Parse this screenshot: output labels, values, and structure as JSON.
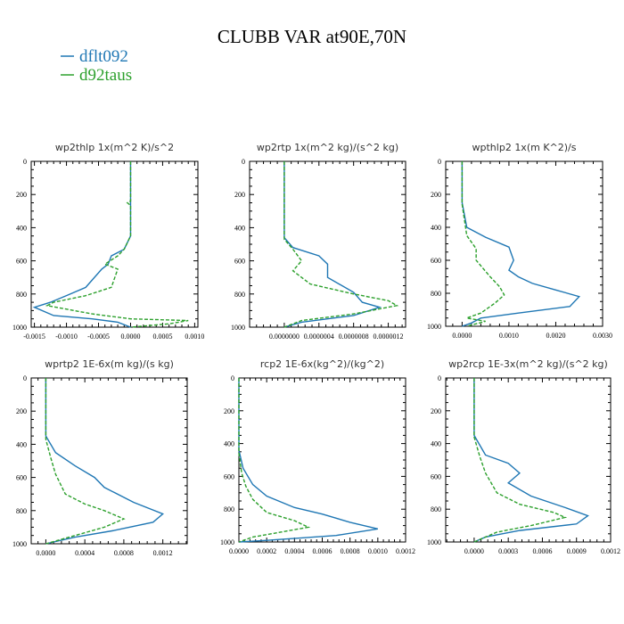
{
  "title": "CLUBB VAR at90E,70N",
  "legend": [
    {
      "label": "dflt092",
      "color": "#1f77b4",
      "dash": ""
    },
    {
      "label": "d92taus",
      "color": "#2ca02c",
      "dash": "4,2"
    }
  ],
  "chart_data": [
    {
      "type": "line",
      "title": "wp2thlp  1x(m^2 K)/s^2",
      "xlim": [
        -0.00155,
        0.00105
      ],
      "xticks": [
        -0.0015,
        -0.001,
        -0.0005,
        0,
        0.0005,
        0.001
      ],
      "xtick_labels": [
        "-0.0015",
        "-0.0010",
        "-0.0005",
        "0.0000",
        "0.0005",
        "0.0010"
      ],
      "ylim": [
        0,
        1000
      ],
      "yticks": [
        0,
        200,
        400,
        600,
        800,
        1000
      ],
      "series": [
        {
          "name": "dflt092",
          "points": [
            [
              0,
              0
            ],
            [
              0,
              250
            ],
            [
              0,
              450
            ],
            [
              -0.0001,
              530
            ],
            [
              -0.0003,
              570
            ],
            [
              -0.00035,
              620
            ],
            [
              -0.00045,
              650
            ],
            [
              -0.0007,
              760
            ],
            [
              -0.001,
              810
            ],
            [
              -0.00125,
              850
            ],
            [
              -0.0015,
              880
            ],
            [
              -0.0012,
              930
            ],
            [
              -0.0006,
              950
            ],
            [
              -0.0002,
              970
            ],
            [
              0,
              1000
            ]
          ]
        },
        {
          "name": "d92taus",
          "points": [
            [
              0,
              0
            ],
            [
              0,
              240
            ],
            [
              -5e-05,
              250
            ],
            [
              0,
              265
            ],
            [
              0,
              450
            ],
            [
              -0.0001,
              530
            ],
            [
              -0.0002,
              570
            ],
            [
              -0.0004,
              620
            ],
            [
              -0.0002,
              650
            ],
            [
              -0.0003,
              760
            ],
            [
              -0.0007,
              810
            ],
            [
              -0.0012,
              850
            ],
            [
              -0.0013,
              870
            ],
            [
              -0.0006,
              920
            ],
            [
              0,
              950
            ],
            [
              0.0009,
              960
            ],
            [
              0.0006,
              980
            ],
            [
              0,
              1000
            ]
          ]
        }
      ]
    },
    {
      "type": "line",
      "title": "wp2rtp  1x(m^2 kg)/(s^2 kg)",
      "xlim": [
        -4e-07,
        1.4e-06
      ],
      "xticks": [
        0,
        4e-07,
        8e-07,
        1.2e-06
      ],
      "xtick_labels": [
        "0.0000000",
        "0.0000004",
        "0.0000008",
        "0.0000012"
      ],
      "ylim": [
        0,
        1000
      ],
      "yticks": [
        0,
        200,
        400,
        600,
        800,
        1000
      ],
      "series": [
        {
          "name": "dflt092",
          "points": [
            [
              0,
              0
            ],
            [
              0,
              460
            ],
            [
              1e-07,
              520
            ],
            [
              4e-07,
              570
            ],
            [
              5e-07,
              620
            ],
            [
              5e-07,
              700
            ],
            [
              8e-07,
              790
            ],
            [
              9e-07,
              850
            ],
            [
              1.1e-06,
              880
            ],
            [
              8e-07,
              930
            ],
            [
              2e-07,
              970
            ],
            [
              0,
              1000
            ]
          ]
        },
        {
          "name": "d92taus",
          "points": [
            [
              0,
              0
            ],
            [
              0,
              470
            ],
            [
              1e-07,
              530
            ],
            [
              2e-07,
              600
            ],
            [
              1e-07,
              660
            ],
            [
              3e-07,
              740
            ],
            [
              8e-07,
              800
            ],
            [
              1.2e-06,
              840
            ],
            [
              1.3e-06,
              870
            ],
            [
              8e-07,
              920
            ],
            [
              2e-07,
              960
            ],
            [
              0,
              1000
            ]
          ]
        }
      ]
    },
    {
      "type": "line",
      "title": "wpthlp2  1x(m K^2)/s",
      "xlim": [
        -0.00035,
        0.003
      ],
      "xticks": [
        0,
        0.001,
        0.002,
        0.003
      ],
      "xtick_labels": [
        "0.0000",
        "0.0010",
        "0.0020",
        "0.0030"
      ],
      "ylim": [
        0,
        1000
      ],
      "yticks": [
        0,
        200,
        400,
        600,
        800,
        1000
      ],
      "series": [
        {
          "name": "dflt092",
          "points": [
            [
              0,
              0
            ],
            [
              0,
              250
            ],
            [
              0.0001,
              400
            ],
            [
              0.0005,
              460
            ],
            [
              0.001,
              520
            ],
            [
              0.0011,
              600
            ],
            [
              0.001,
              660
            ],
            [
              0.0012,
              700
            ],
            [
              0.0015,
              740
            ],
            [
              0.002,
              780
            ],
            [
              0.0025,
              820
            ],
            [
              0.0023,
              880
            ],
            [
              0.0012,
              920
            ],
            [
              0.0004,
              950
            ],
            [
              0.0002,
              980
            ],
            [
              0,
              1000
            ]
          ]
        },
        {
          "name": "d92taus",
          "points": [
            [
              0,
              0
            ],
            [
              0,
              260
            ],
            [
              0.0001,
              450
            ],
            [
              0.0003,
              530
            ],
            [
              0.0003,
              600
            ],
            [
              0.0006,
              700
            ],
            [
              0.0008,
              760
            ],
            [
              0.0009,
              810
            ],
            [
              0.0007,
              860
            ],
            [
              0.0004,
              920
            ],
            [
              0.0001,
              950
            ],
            [
              0.0005,
              970
            ],
            [
              0.0001,
              1000
            ]
          ]
        }
      ]
    },
    {
      "type": "line",
      "title": "wprtp2  1E-6x(m kg)/(s kg)",
      "xlim": [
        -0.00015,
        0.00145
      ],
      "xticks": [
        0,
        0.0004,
        0.0008,
        0.0012
      ],
      "xtick_labels": [
        "0.0000",
        "0.0004",
        "0.0008",
        "0.0012"
      ],
      "ylim": [
        0,
        1000
      ],
      "yticks": [
        0,
        200,
        400,
        600,
        800,
        1000
      ],
      "series": [
        {
          "name": "dflt092",
          "points": [
            [
              0,
              0
            ],
            [
              0,
              350
            ],
            [
              0.0001,
              450
            ],
            [
              0.0003,
              530
            ],
            [
              0.0005,
              600
            ],
            [
              0.0006,
              660
            ],
            [
              0.0009,
              750
            ],
            [
              0.0012,
              820
            ],
            [
              0.0011,
              870
            ],
            [
              0.0007,
              920
            ],
            [
              0.0003,
              960
            ],
            [
              0,
              1000
            ]
          ]
        },
        {
          "name": "d92taus",
          "points": [
            [
              0,
              0
            ],
            [
              0,
              370
            ],
            [
              5e-05,
              480
            ],
            [
              0.0001,
              580
            ],
            [
              0.0002,
              700
            ],
            [
              0.0004,
              760
            ],
            [
              0.0006,
              800
            ],
            [
              0.0008,
              850
            ],
            [
              0.0006,
              900
            ],
            [
              0.0003,
              950
            ],
            [
              0,
              1000
            ]
          ]
        }
      ]
    },
    {
      "type": "line",
      "title": "rcp2  1E-6x(kg^2)/(kg^2)",
      "xlim": [
        0,
        0.0012
      ],
      "xticks": [
        0,
        0.0002,
        0.0004,
        0.0006,
        0.0008,
        0.001,
        0.0012
      ],
      "xtick_labels": [
        "0.0000",
        "0.0002",
        "0.0004",
        "0.0006",
        "0.0008",
        "0.0010",
        "0.0012"
      ],
      "ylim": [
        0,
        1000
      ],
      "yticks": [
        0,
        200,
        400,
        600,
        800,
        1000
      ],
      "series": [
        {
          "name": "dflt092",
          "points": [
            [
              0,
              0
            ],
            [
              0,
              440
            ],
            [
              3e-05,
              550
            ],
            [
              0.0001,
              650
            ],
            [
              0.0002,
              720
            ],
            [
              0.0004,
              790
            ],
            [
              0.0006,
              830
            ],
            [
              0.0008,
              880
            ],
            [
              0.001,
              920
            ],
            [
              0.0007,
              960
            ],
            [
              0.0002,
              990
            ],
            [
              0,
              1000
            ]
          ]
        },
        {
          "name": "d92taus",
          "points": [
            [
              0,
              0
            ],
            [
              0,
              460
            ],
            [
              2e-05,
              580
            ],
            [
              5e-05,
              660
            ],
            [
              0.0001,
              740
            ],
            [
              0.0002,
              820
            ],
            [
              0.0004,
              870
            ],
            [
              0.0005,
              910
            ],
            [
              0.0003,
              940
            ],
            [
              0.0001,
              970
            ],
            [
              0,
              1000
            ]
          ]
        }
      ]
    },
    {
      "type": "line",
      "title": "wp2rcp  1E-3x(m^2 kg)/(s^2 kg)",
      "xlim": [
        -0.00025,
        0.0012
      ],
      "xticks": [
        0,
        0.0003,
        0.0006,
        0.0009,
        0.0012
      ],
      "xtick_labels": [
        "0.0000",
        "0.0003",
        "0.0006",
        "0.0009",
        "0.0012"
      ],
      "ylim": [
        0,
        1000
      ],
      "yticks": [
        0,
        200,
        400,
        600,
        800,
        1000
      ],
      "series": [
        {
          "name": "dflt092",
          "points": [
            [
              0,
              0
            ],
            [
              0,
              350
            ],
            [
              0.0001,
              470
            ],
            [
              0.0003,
              520
            ],
            [
              0.0004,
              580
            ],
            [
              0.0003,
              640
            ],
            [
              0.0005,
              720
            ],
            [
              0.0008,
              790
            ],
            [
              0.001,
              840
            ],
            [
              0.0009,
              890
            ],
            [
              0.0004,
              930
            ],
            [
              0.0001,
              970
            ],
            [
              0,
              1000
            ]
          ]
        },
        {
          "name": "d92taus",
          "points": [
            [
              0,
              0
            ],
            [
              0,
              360
            ],
            [
              5e-05,
              480
            ],
            [
              0.0001,
              580
            ],
            [
              0.0002,
              700
            ],
            [
              0.0004,
              770
            ],
            [
              0.0007,
              820
            ],
            [
              0.0008,
              850
            ],
            [
              0.0005,
              900
            ],
            [
              0.0002,
              940
            ],
            [
              0,
              1000
            ]
          ]
        }
      ]
    }
  ]
}
